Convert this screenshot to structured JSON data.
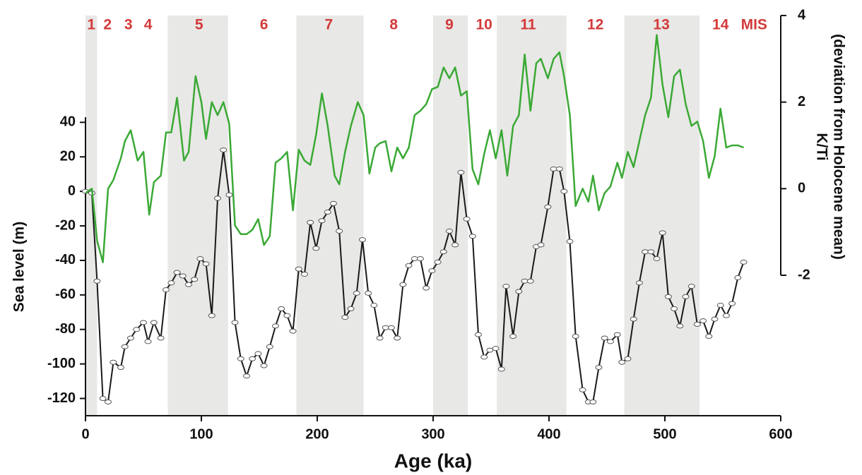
{
  "chart_data": {
    "type": "line",
    "xlabel": "Age (ka)",
    "ylabel": "Sea level (m)",
    "y2label": [
      "K/Ti",
      "(deviation from Holocene mean)"
    ],
    "xlim": [
      0,
      600
    ],
    "xticks": [
      0,
      100,
      200,
      300,
      400,
      500,
      600
    ],
    "ylim": [
      -130,
      43
    ],
    "yticks": [
      -120,
      -100,
      -80,
      -60,
      -40,
      -20,
      0,
      20,
      40
    ],
    "y2lim": [
      -2,
      4
    ],
    "y2ticks": [
      -2,
      0,
      2,
      4
    ],
    "shaded_bands": [
      [
        0,
        10
      ],
      [
        71,
        123
      ],
      [
        182,
        240
      ],
      [
        300,
        330
      ],
      [
        355,
        415
      ],
      [
        465,
        530
      ]
    ],
    "band_color": "#e8e8e6",
    "annotation_color": "#d33a3a",
    "annotations": [
      {
        "text": "1",
        "x": 5
      },
      {
        "text": "2",
        "x": 19
      },
      {
        "text": "3",
        "x": 37
      },
      {
        "text": "4",
        "x": 54
      },
      {
        "text": "5",
        "x": 98
      },
      {
        "text": "6",
        "x": 154
      },
      {
        "text": "7",
        "x": 210
      },
      {
        "text": "8",
        "x": 266
      },
      {
        "text": "9",
        "x": 314
      },
      {
        "text": "10",
        "x": 344
      },
      {
        "text": "11",
        "x": 382
      },
      {
        "text": "12",
        "x": 440
      },
      {
        "text": "13",
        "x": 497
      },
      {
        "text": "14",
        "x": 548
      },
      {
        "text": "MIS",
        "x": 577
      }
    ],
    "series": [
      {
        "name": "Sea level",
        "color": "#1a1a1a",
        "markers": true,
        "x": [
          0,
          5.5,
          10,
          15,
          19.5,
          24,
          30.5,
          34,
          39,
          44,
          50,
          54,
          59,
          65,
          69.5,
          74,
          79,
          84,
          89,
          94,
          99,
          104,
          109,
          114,
          119,
          124,
          129,
          134,
          139,
          144,
          149,
          154,
          159,
          164,
          169,
          174,
          179,
          184,
          189,
          194,
          199,
          204,
          209,
          214,
          219,
          224,
          229,
          234,
          239,
          244,
          249,
          254,
          259,
          264,
          269,
          274,
          279,
          284,
          289,
          294,
          299,
          304,
          309,
          314,
          319,
          324,
          329,
          334,
          339,
          344,
          349,
          354,
          359,
          363,
          369,
          374,
          379,
          384,
          389,
          393,
          399,
          404,
          409,
          413,
          418,
          423,
          429,
          434,
          438,
          443,
          448,
          453,
          459,
          463,
          468,
          473,
          478,
          483,
          488,
          493,
          498,
          503,
          508,
          513,
          518,
          523,
          528,
          533,
          538,
          543,
          548,
          553,
          558,
          563,
          568
        ],
        "values": [
          0,
          -1,
          -52,
          -120,
          -122,
          -99,
          -102,
          -90,
          -85,
          -80,
          -76,
          -87,
          -76,
          -85,
          -57,
          -53,
          -47,
          -49,
          -54,
          -51,
          -39,
          -42,
          -72,
          -4,
          24,
          -2,
          -76,
          -97,
          -107,
          -97,
          -94,
          -101,
          -90,
          -78,
          -68,
          -72,
          -81,
          -45,
          -48,
          -18,
          -33,
          -17,
          -12,
          -7,
          -23,
          -73,
          -68,
          -59,
          -28,
          -59,
          -66,
          -85,
          -79,
          -79,
          -85,
          -54,
          -43,
          -39,
          -39,
          -56,
          -46,
          -41,
          -35,
          -23,
          -31,
          11,
          -16,
          -26,
          -83,
          -96,
          -92,
          -91,
          -103,
          -55,
          -84,
          -58,
          -52,
          -52,
          -32,
          -31,
          -9,
          13,
          13,
          0,
          -29,
          -84,
          -115,
          -122,
          -122,
          -102,
          -85,
          -87,
          -83,
          -99,
          -97,
          -74,
          -53,
          -35,
          -35,
          -39,
          -24,
          -61,
          -68,
          -78,
          -61,
          -55,
          -77,
          -75,
          -84,
          -74,
          -66,
          -72,
          -65,
          -50,
          -41
        ]
      },
      {
        "name": "K/Ti",
        "color": "#3aa935",
        "axis": "y2",
        "markers": false,
        "x": [
          0,
          5.5,
          10,
          15,
          19.5,
          24,
          30.5,
          34,
          39,
          45,
          50,
          55,
          59,
          65,
          69.5,
          74,
          79,
          85,
          89,
          95,
          100,
          104,
          109,
          114,
          119,
          124,
          129,
          134,
          139,
          144,
          149,
          154,
          159,
          164,
          169,
          174,
          179,
          184,
          189,
          194,
          199,
          204,
          209,
          215,
          219,
          224,
          229,
          235,
          240,
          245,
          250,
          254,
          259,
          264,
          269,
          274,
          279,
          284,
          289,
          294,
          299,
          304,
          309,
          314,
          319,
          324,
          329,
          334,
          339,
          344,
          349,
          354,
          359,
          364,
          369,
          374,
          379,
          384,
          389,
          393,
          399,
          404,
          409,
          413,
          418,
          423,
          429,
          434,
          438,
          443,
          448,
          453,
          459,
          463,
          468,
          473,
          478,
          483,
          488,
          493,
          498,
          503,
          508,
          513,
          518,
          523,
          528,
          533,
          538,
          543,
          548,
          553,
          558,
          563,
          568
        ],
        "values": [
          -0.1,
          0,
          -1.2,
          -1.7,
          0,
          0.2,
          0.7,
          1.1,
          1.35,
          0.65,
          0.85,
          -0.6,
          0.15,
          0.3,
          1.3,
          1.3,
          2.1,
          0.65,
          0.85,
          2.6,
          2,
          1.15,
          2,
          1.7,
          2,
          1.5,
          -0.85,
          -1.05,
          -1.05,
          -0.95,
          -0.7,
          -1.3,
          -1.1,
          0.6,
          0.7,
          0.85,
          -0.5,
          0.9,
          0.65,
          0.55,
          1.25,
          2.2,
          1.45,
          0.3,
          0.1,
          0.85,
          1.45,
          2,
          1.7,
          0.35,
          0.95,
          1.05,
          1.1,
          0.4,
          0.95,
          0.7,
          0.95,
          1.7,
          1.8,
          1.95,
          2.3,
          2.35,
          2.8,
          2.55,
          2.8,
          2.15,
          2.25,
          0.45,
          0.1,
          0.8,
          1.35,
          0.7,
          1.35,
          0.3,
          1.45,
          1.7,
          3.1,
          1.8,
          2.9,
          3,
          2.55,
          3,
          3.15,
          2.6,
          1.7,
          -0.4,
          0,
          -0.3,
          0.3,
          -0.5,
          -0.1,
          0.05,
          0.6,
          0.25,
          0.85,
          0.5,
          1.1,
          1.7,
          2.1,
          3.55,
          2.4,
          1.65,
          2.6,
          2.75,
          1.95,
          1.45,
          1.55,
          1.1,
          0.25,
          0.75,
          1.85,
          0.95,
          1,
          1,
          0.95
        ]
      }
    ]
  }
}
